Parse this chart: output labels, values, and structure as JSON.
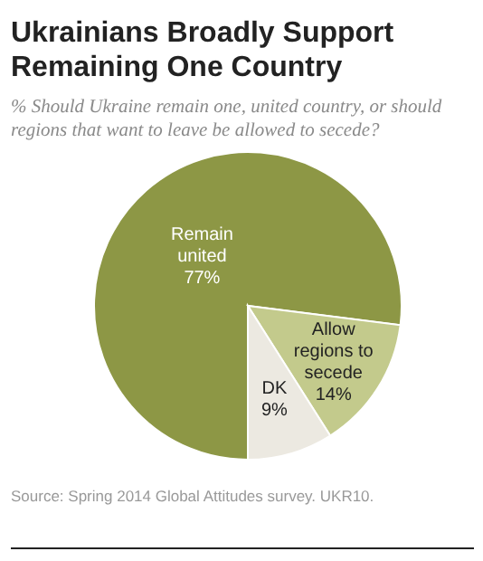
{
  "chart_data": {
    "type": "pie",
    "title": "Ukrainians Broadly Support Remaining One Country",
    "subtitle": "% Should Ukraine remain one, united country, or should regions that want to leave be allowed to secede?",
    "categories": [
      "Remain united",
      "Allow regions to secede",
      "DK"
    ],
    "values": [
      77,
      14,
      9
    ],
    "colors": [
      "#8d9745",
      "#c3ca8c",
      "#ece9e1"
    ],
    "value_labels": [
      "77%",
      "14%",
      "9%"
    ],
    "annotations": [
      "Source: Spring 2014 Global Attitudes survey. UKR10."
    ]
  }
}
